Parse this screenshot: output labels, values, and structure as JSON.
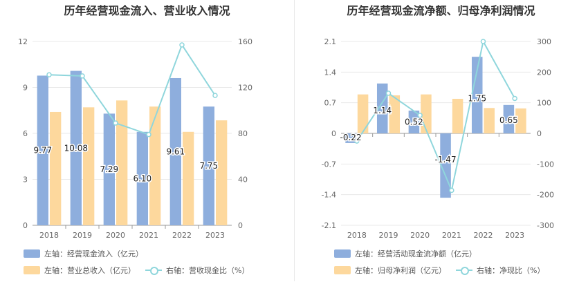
{
  "charts": [
    {
      "title": "历年经营现金流入、营业收入情况",
      "legend": {
        "bar1": "左轴：经营现金流入（亿元）",
        "bar2": "左轴：营业总收入（亿元）",
        "line": "右轴：营收现金比（%）"
      }
    },
    {
      "title": "历年经营现金流净额、归母净利润情况",
      "legend": {
        "bar1": "左轴：经营活动现金流净额（亿元）",
        "bar2": "左轴：归母净利润（亿元）",
        "line": "右轴：净现比（%）"
      }
    }
  ],
  "colors": {
    "bar1": "#8eaedd",
    "bar2": "#fdd89d",
    "line": "#8fd6dc",
    "grid": "#e8e8e8",
    "axisText": "#666666"
  },
  "chart_data": [
    {
      "type": "bar",
      "title": "历年经营现金流入、营业收入情况",
      "categories": [
        "2018",
        "2019",
        "2020",
        "2021",
        "2022",
        "2023"
      ],
      "left_ylim": [
        0,
        12
      ],
      "left_ticks": [
        "0",
        "3",
        "6",
        "9",
        "12"
      ],
      "right_ylim": [
        0,
        160
      ],
      "right_ticks": [
        "0",
        "40",
        "80",
        "120",
        "160"
      ],
      "series": [
        {
          "name": "左轴：经营现金流入（亿元）",
          "axis": "left",
          "kind": "bar",
          "values": [
            9.77,
            10.08,
            7.29,
            6.1,
            9.61,
            7.75
          ],
          "labels": [
            "9.77",
            "10.08",
            "7.29",
            "6.10",
            "9.61",
            "7.75"
          ]
        },
        {
          "name": "左轴：营业总收入（亿元）",
          "axis": "left",
          "kind": "bar",
          "values": [
            7.4,
            7.7,
            8.15,
            7.75,
            6.1,
            6.85
          ]
        },
        {
          "name": "右轴：营收现金比（%）",
          "axis": "right",
          "kind": "line",
          "values": [
            131,
            130,
            89,
            79,
            157,
            113
          ]
        }
      ]
    },
    {
      "type": "bar",
      "title": "历年经营现金流净额、归母净利润情况",
      "categories": [
        "2018",
        "2019",
        "2020",
        "2021",
        "2022",
        "2023"
      ],
      "left_ylim": [
        -2.1,
        2.1
      ],
      "left_ticks": [
        "-2.1",
        "-1.4",
        "-0.7",
        "0",
        "0.7",
        "1.4",
        "2.1"
      ],
      "right_ylim": [
        -300,
        300
      ],
      "right_ticks": [
        "-300",
        "-200",
        "-100",
        "0",
        "100",
        "200",
        "300"
      ],
      "series": [
        {
          "name": "左轴：经营活动现金流净额（亿元）",
          "axis": "left",
          "kind": "bar",
          "values": [
            -0.22,
            1.14,
            0.52,
            -1.47,
            1.75,
            0.65
          ],
          "labels": [
            "-0.22",
            "1.14",
            "0.52",
            "-1.47",
            "1.75",
            "0.65"
          ]
        },
        {
          "name": "左轴：归母净利润（亿元）",
          "axis": "left",
          "kind": "bar",
          "values": [
            0.89,
            0.87,
            0.89,
            0.79,
            0.58,
            0.57
          ]
        },
        {
          "name": "右轴：净现比（%）",
          "axis": "right",
          "kind": "line",
          "values": [
            -25,
            131,
            59,
            -186,
            300,
            114
          ]
        }
      ]
    }
  ]
}
